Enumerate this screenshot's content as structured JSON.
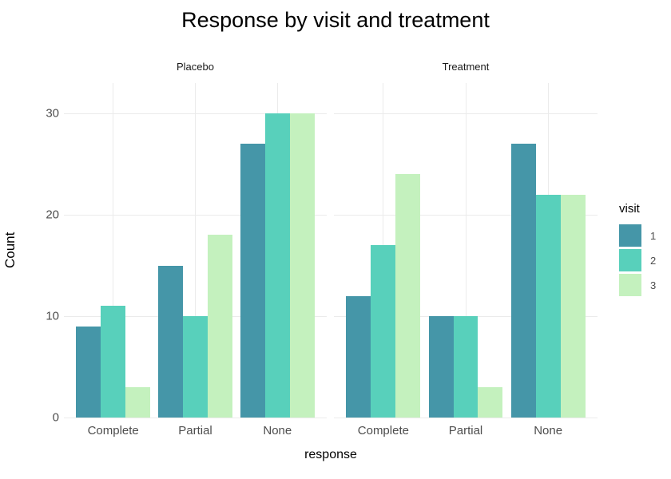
{
  "chart_data": {
    "type": "bar",
    "title": "Response by visit and treatment",
    "xlabel": "response",
    "ylabel": "Count",
    "ylim": [
      0,
      33
    ],
    "yticks": [
      0,
      10,
      20,
      30
    ],
    "grid": true,
    "categories": [
      "Complete",
      "Partial",
      "None"
    ],
    "facets": [
      {
        "label": "Placebo",
        "series": [
          {
            "name": "1",
            "values": [
              9,
              15,
              27
            ]
          },
          {
            "name": "2",
            "values": [
              11,
              10,
              30
            ]
          },
          {
            "name": "3",
            "values": [
              3,
              18,
              30
            ]
          }
        ]
      },
      {
        "label": "Treatment",
        "series": [
          {
            "name": "1",
            "values": [
              12,
              10,
              27
            ]
          },
          {
            "name": "2",
            "values": [
              17,
              10,
              22
            ]
          },
          {
            "name": "3",
            "values": [
              24,
              3,
              22
            ]
          }
        ]
      }
    ],
    "legend": {
      "title": "visit",
      "position": "right",
      "entries": [
        "1",
        "2",
        "3"
      ]
    },
    "palette": [
      "#4596A8",
      "#58D0BB",
      "#C4F1BE"
    ],
    "colors": {
      "gridline": "#EBEBEB",
      "axis_text": "#4D4D4D",
      "title_text": "#000000",
      "strip_text": "#1A1A1A",
      "background": "#FFFFFF"
    }
  }
}
